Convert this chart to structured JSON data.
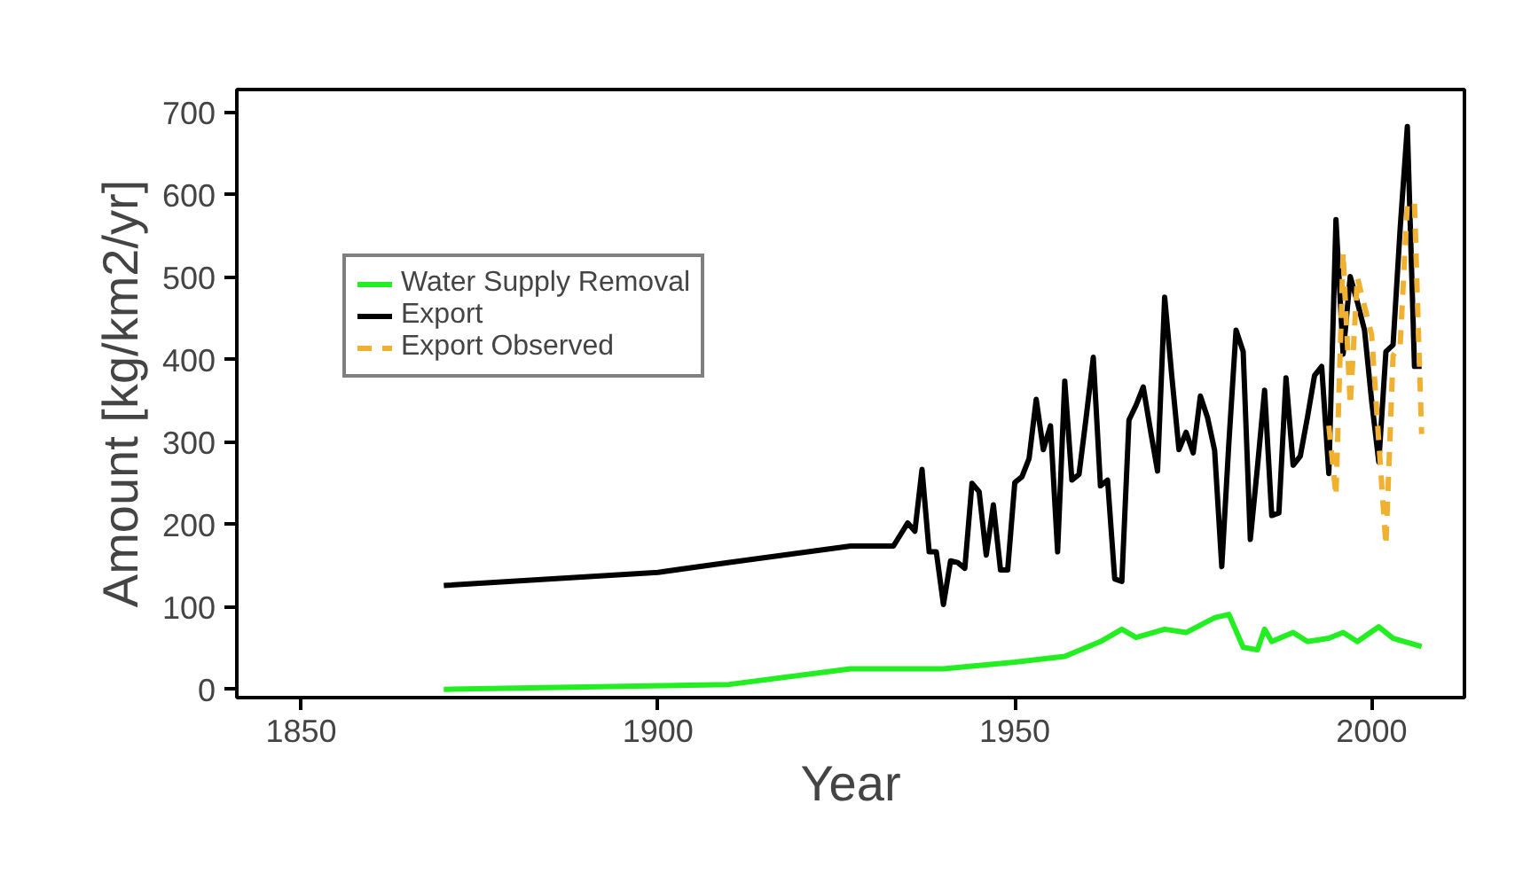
{
  "chart_data": {
    "type": "line",
    "xlabel": "Year",
    "ylabel": "Amount [kg/km2/yr]",
    "xlim": [
      1841,
      2013
    ],
    "ylim": [
      -10,
      728
    ],
    "xticks": [
      1850,
      1900,
      1950,
      2000
    ],
    "yticks": [
      0,
      100,
      200,
      300,
      400,
      500,
      600,
      700
    ],
    "grid": false,
    "legend": "top left",
    "line_style": "solid",
    "series": [
      {
        "name": "Water Supply Removal",
        "color": "#22ee22",
        "x": [
          1870,
          1910,
          1927,
          1940,
          1950,
          1957,
          1962,
          1965,
          1967,
          1971,
          1974,
          1978,
          1980,
          1982,
          1984,
          1985,
          1986,
          1989,
          1991,
          1994,
          1996,
          1998,
          2001,
          2003,
          2007
        ],
        "values": [
          0,
          6,
          25,
          25,
          33,
          40,
          58,
          73,
          63,
          73,
          69,
          87,
          91,
          51,
          48,
          73,
          58,
          69,
          58,
          62,
          69,
          58,
          76,
          62,
          52
        ]
      },
      {
        "name": "Export",
        "color": "#000000",
        "x": [
          1870,
          1900,
          1910,
          1927,
          1933,
          1935,
          1936,
          1937,
          1938,
          1939,
          1940,
          1941,
          1942,
          1943,
          1944,
          1945,
          1946,
          1947,
          1948,
          1949,
          1950,
          1951,
          1952,
          1953,
          1954,
          1955,
          1956,
          1957,
          1958,
          1959,
          1960,
          1961,
          1962,
          1963,
          1964,
          1965,
          1966,
          1967,
          1968,
          1969,
          1970,
          1971,
          1972,
          1973,
          1974,
          1975,
          1976,
          1977,
          1978,
          1979,
          1980,
          1981,
          1982,
          1983,
          1984,
          1985,
          1986,
          1987,
          1988,
          1989,
          1990,
          1991,
          1992,
          1993,
          1994,
          1995,
          1996,
          1997,
          1998,
          1999,
          2000,
          2001,
          2002,
          2003,
          2004,
          2005,
          2006,
          2007
        ],
        "values": [
          126,
          142,
          154,
          174,
          174,
          202,
          192,
          267,
          167,
          167,
          103,
          156,
          154,
          147,
          250,
          240,
          163,
          224,
          145,
          145,
          251,
          258,
          280,
          352,
          291,
          320,
          167,
          374,
          254,
          261,
          330,
          403,
          247,
          254,
          134,
          131,
          327,
          345,
          367,
          315,
          265,
          476,
          380,
          291,
          312,
          287,
          356,
          330,
          290,
          149,
          300,
          436,
          410,
          182,
          270,
          363,
          211,
          214,
          378,
          272,
          283,
          330,
          381,
          392,
          262,
          570,
          407,
          501,
          470,
          436,
          350,
          276,
          410,
          418,
          560,
          683,
          392,
          392
        ]
      },
      {
        "name": "Export Observed",
        "color": "#f0b030",
        "line_style": "dashed",
        "x": [
          1994,
          1995,
          1996,
          1997,
          1998,
          1999,
          2000,
          2001,
          2002,
          2003,
          2004,
          2005,
          2006,
          2007
        ],
        "values": [
          320,
          235,
          530,
          345,
          500,
          465,
          430,
          300,
          175,
          405,
          418,
          590,
          590,
          310
        ]
      }
    ]
  }
}
